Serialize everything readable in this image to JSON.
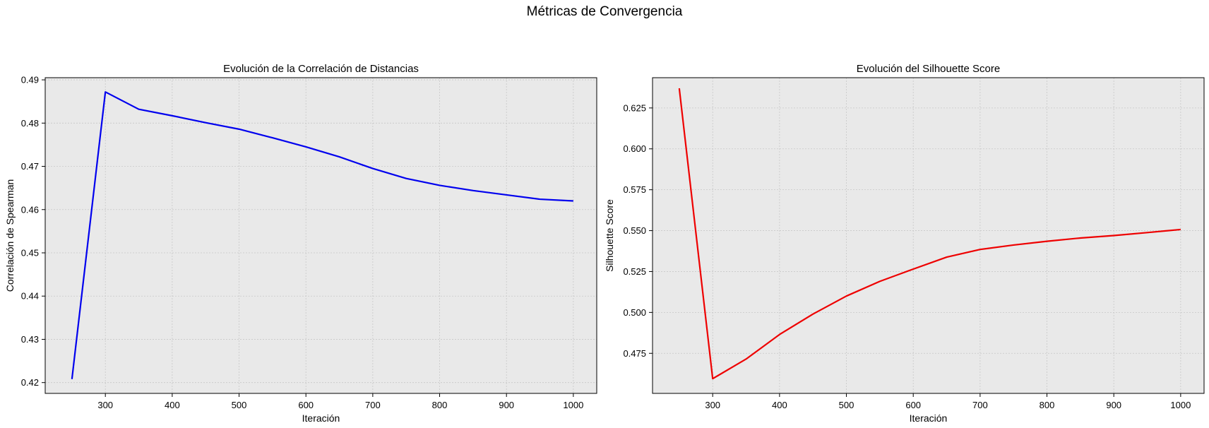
{
  "figure": {
    "suptitle": "Métricas de Convergencia"
  },
  "colors": {
    "plot_background": "#e9e9e9",
    "grid": "#c8c8c8",
    "axes_edge": "#000000",
    "series_left": "#0000ee",
    "series_right": "#ee0000"
  },
  "chart_data": [
    {
      "type": "line",
      "title": "Evolución de la Correlación de Distancias",
      "xlabel": "Iteración",
      "ylabel": "Correlación de Spearman",
      "grid": true,
      "xlim": [
        210,
        1035
      ],
      "ylim": [
        0.4175,
        0.4905
      ],
      "xticks": [
        300,
        400,
        500,
        600,
        700,
        800,
        900,
        1000
      ],
      "xtick_labels": [
        "300",
        "400",
        "500",
        "600",
        "700",
        "800",
        "900",
        "1000"
      ],
      "yticks": [
        0.42,
        0.43,
        0.44,
        0.45,
        0.46,
        0.47,
        0.48,
        0.49
      ],
      "ytick_labels": [
        "0.42",
        "0.43",
        "0.44",
        "0.45",
        "0.46",
        "0.47",
        "0.48",
        "0.49"
      ],
      "series": [
        {
          "color": "#0000ee",
          "x": [
            250,
            300,
            350,
            400,
            450,
            500,
            550,
            600,
            650,
            700,
            750,
            800,
            850,
            900,
            950,
            1000
          ],
          "y": [
            0.4208,
            0.4872,
            0.4832,
            0.4817,
            0.4801,
            0.4786,
            0.4766,
            0.4745,
            0.4722,
            0.4695,
            0.4672,
            0.4656,
            0.4644,
            0.4634,
            0.4624,
            0.462
          ]
        }
      ]
    },
    {
      "type": "line",
      "title": "Evolución del Silhouette Score",
      "xlabel": "Iteración",
      "ylabel": "Silhouette Score",
      "grid": true,
      "xlim": [
        210,
        1035
      ],
      "ylim": [
        0.4505,
        0.6435
      ],
      "xticks": [
        300,
        400,
        500,
        600,
        700,
        800,
        900,
        1000
      ],
      "xtick_labels": [
        "300",
        "400",
        "500",
        "600",
        "700",
        "800",
        "900",
        "1000"
      ],
      "yticks": [
        0.475,
        0.5,
        0.525,
        0.55,
        0.575,
        0.6,
        0.625
      ],
      "ytick_labels": [
        "0.475",
        "0.500",
        "0.525",
        "0.550",
        "0.575",
        "0.600",
        "0.625"
      ],
      "series": [
        {
          "color": "#ee0000",
          "x": [
            250,
            300,
            350,
            400,
            450,
            500,
            550,
            600,
            650,
            700,
            750,
            800,
            850,
            900,
            950,
            1000
          ],
          "y": [
            0.637,
            0.4595,
            0.4715,
            0.4865,
            0.499,
            0.51,
            0.519,
            0.5265,
            0.5338,
            0.5385,
            0.5412,
            0.5435,
            0.5455,
            0.547,
            0.5488,
            0.5507
          ]
        }
      ]
    }
  ]
}
